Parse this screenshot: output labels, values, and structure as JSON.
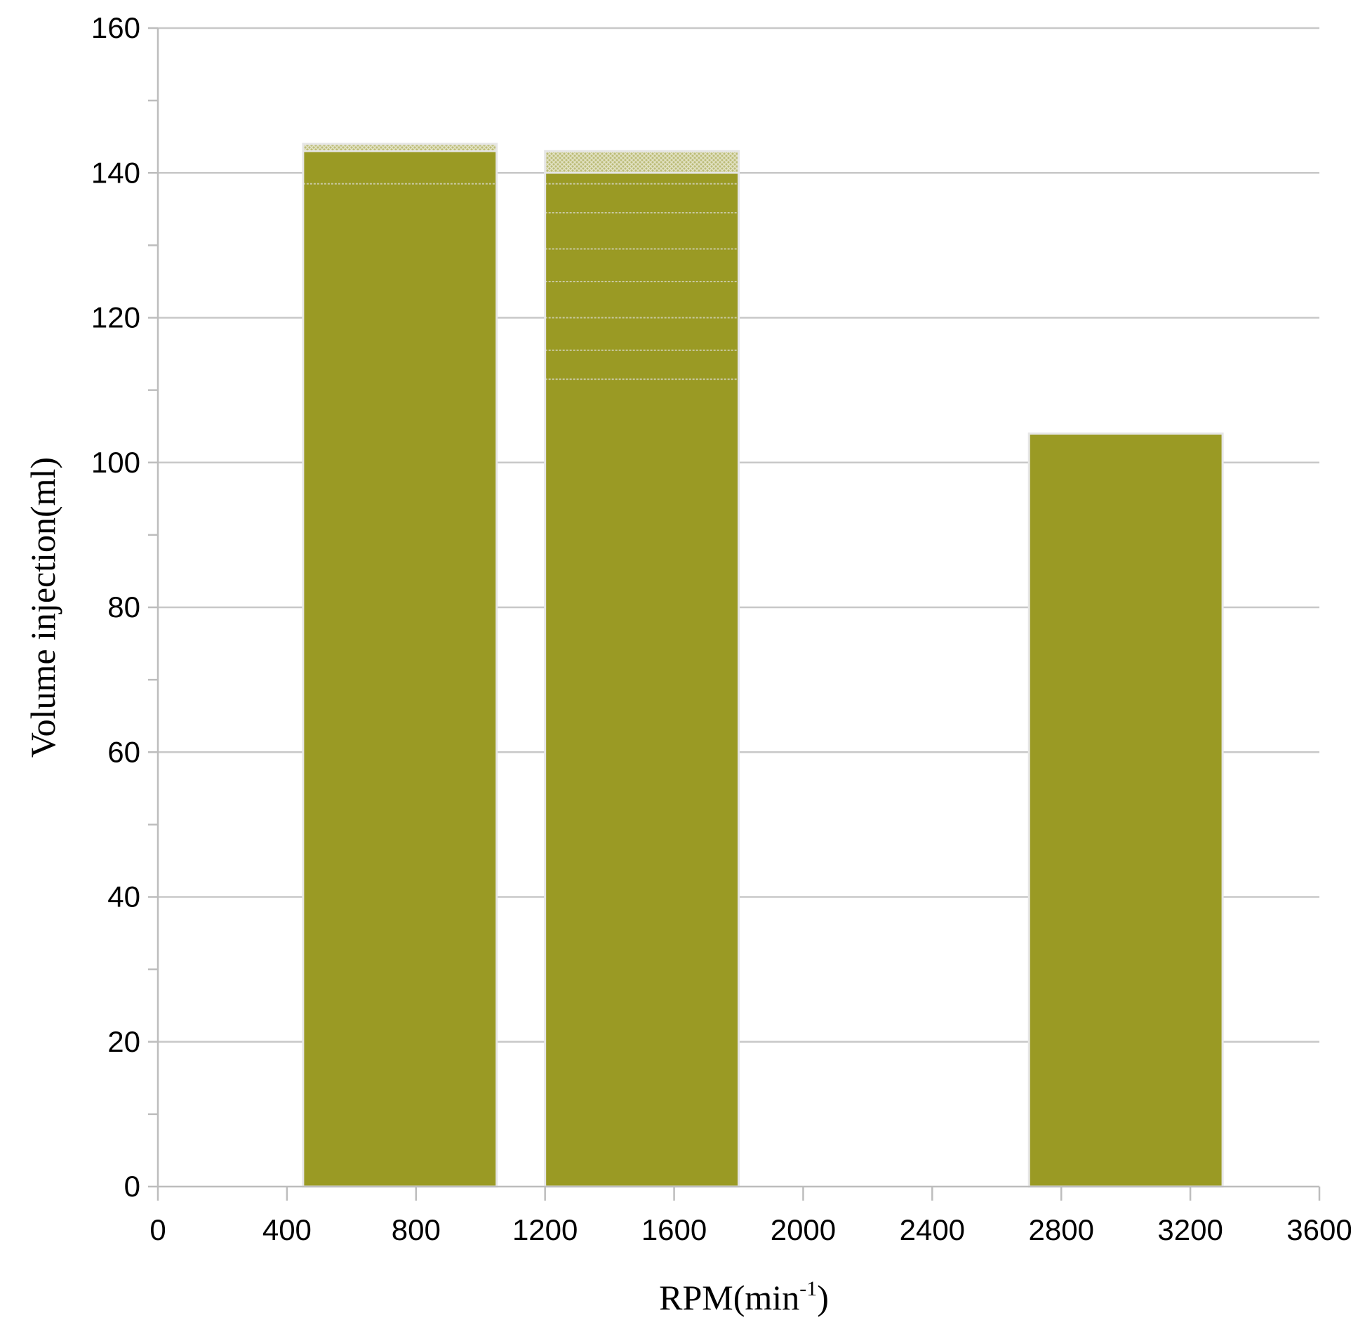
{
  "chart_data": {
    "type": "bar",
    "title": "",
    "xlabel": "RPM(min",
    "xlabel_sup": "-1",
    "xlabel_suffix": ")",
    "ylabel": "Volume injection(ml)",
    "xlim": [
      0,
      3600
    ],
    "ylim": [
      0,
      160
    ],
    "x_ticks": [
      0,
      400,
      800,
      1200,
      1600,
      2000,
      2400,
      2800,
      3200,
      3600
    ],
    "y_ticks": [
      0,
      20,
      40,
      60,
      80,
      100,
      120,
      140,
      160
    ],
    "grid": true,
    "bars": [
      {
        "x_start": 450,
        "x_end": 1050,
        "value": 143,
        "top": 144,
        "thin_lines": [
          138.5
        ]
      },
      {
        "x_start": 1200,
        "x_end": 1800,
        "value": 140,
        "top": 143,
        "thin_lines": [
          138.5,
          134.5,
          129.5,
          125,
          120,
          115.5,
          111.5
        ]
      },
      {
        "x_start": 2700,
        "x_end": 3300,
        "value": 104,
        "top": 104,
        "thin_lines": []
      }
    ],
    "colors": {
      "bar": "#9a9a24",
      "bar_cap": "#c4c48a",
      "bar_outline": "#e6e6e6",
      "grid": "#c8c8c8",
      "axis": "#bdbdbd"
    }
  }
}
